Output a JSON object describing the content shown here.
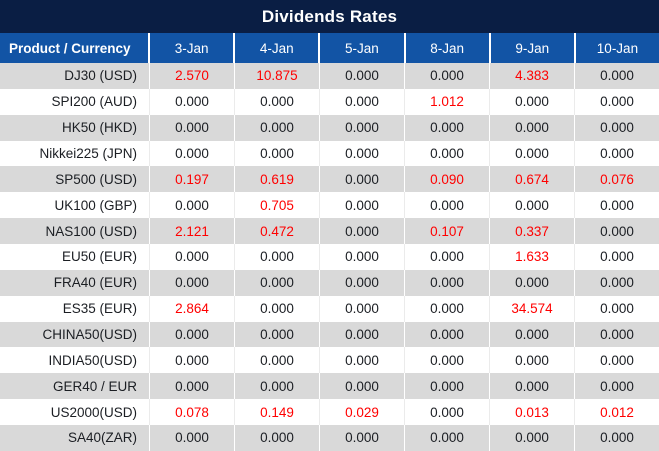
{
  "title": "Dividends Rates",
  "chart_data": {
    "type": "table",
    "title": "Dividends Rates",
    "product_header": "Product / Currency",
    "date_headers": [
      "3-Jan",
      "4-Jan",
      "5-Jan",
      "8-Jan",
      "9-Jan",
      "10-Jan"
    ],
    "rows": [
      {
        "product": "DJ30 (USD)",
        "values": [
          "2.570",
          "10.875",
          "0.000",
          "0.000",
          "4.383",
          "0.000"
        ]
      },
      {
        "product": "SPI200 (AUD)",
        "values": [
          "0.000",
          "0.000",
          "0.000",
          "1.012",
          "0.000",
          "0.000"
        ]
      },
      {
        "product": "HK50 (HKD)",
        "values": [
          "0.000",
          "0.000",
          "0.000",
          "0.000",
          "0.000",
          "0.000"
        ]
      },
      {
        "product": "Nikkei225 (JPN)",
        "values": [
          "0.000",
          "0.000",
          "0.000",
          "0.000",
          "0.000",
          "0.000"
        ]
      },
      {
        "product": "SP500 (USD)",
        "values": [
          "0.197",
          "0.619",
          "0.000",
          "0.090",
          "0.674",
          "0.076"
        ]
      },
      {
        "product": "UK100 (GBP)",
        "values": [
          "0.000",
          "0.705",
          "0.000",
          "0.000",
          "0.000",
          "0.000"
        ]
      },
      {
        "product": "NAS100 (USD)",
        "values": [
          "2.121",
          "0.472",
          "0.000",
          "0.107",
          "0.337",
          "0.000"
        ]
      },
      {
        "product": "EU50 (EUR)",
        "values": [
          "0.000",
          "0.000",
          "0.000",
          "0.000",
          "1.633",
          "0.000"
        ]
      },
      {
        "product": "FRA40 (EUR)",
        "values": [
          "0.000",
          "0.000",
          "0.000",
          "0.000",
          "0.000",
          "0.000"
        ]
      },
      {
        "product": "ES35 (EUR)",
        "values": [
          "2.864",
          "0.000",
          "0.000",
          "0.000",
          "34.574",
          "0.000"
        ]
      },
      {
        "product": "CHINA50(USD)",
        "values": [
          "0.000",
          "0.000",
          "0.000",
          "0.000",
          "0.000",
          "0.000"
        ]
      },
      {
        "product": "INDIA50(USD)",
        "values": [
          "0.000",
          "0.000",
          "0.000",
          "0.000",
          "0.000",
          "0.000"
        ]
      },
      {
        "product": "GER40 / EUR",
        "values": [
          "0.000",
          "0.000",
          "0.000",
          "0.000",
          "0.000",
          "0.000"
        ]
      },
      {
        "product": "US2000(USD)",
        "values": [
          "0.078",
          "0.149",
          "0.029",
          "0.000",
          "0.013",
          "0.012"
        ]
      },
      {
        "product": "SA40(ZAR)",
        "values": [
          "0.000",
          "0.000",
          "0.000",
          "0.000",
          "0.000",
          "0.000"
        ]
      }
    ],
    "value_color_rule": "non-zero values shown in red, zero values in dark gray"
  },
  "colors": {
    "title_bg": "#0a1e44",
    "header_bg": "#1254a5",
    "header_text": "#ffffff",
    "row_gray": "#d9d9d9",
    "row_white": "#ffffff",
    "value_red": "#ff0000",
    "text_dark": "#1b1e23",
    "separator_light": "#ebebeb"
  }
}
